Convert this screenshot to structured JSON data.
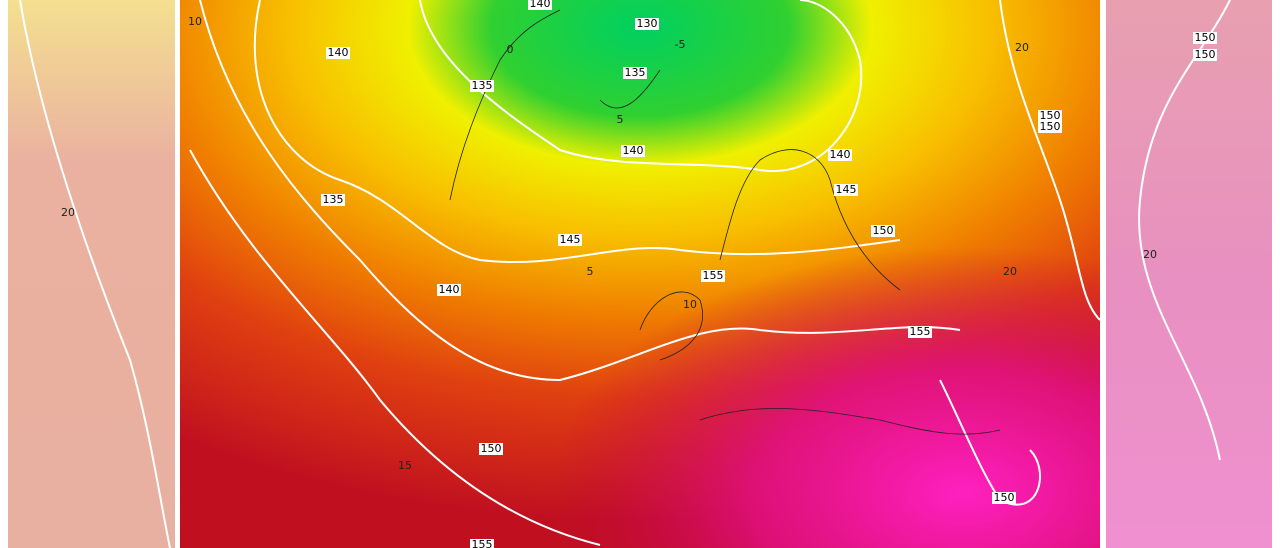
{
  "contour_labels": [
    "140",
    "130",
    "140",
    "135",
    "135",
    "140",
    "140",
    "145",
    "135",
    "145",
    "150",
    "155",
    "140",
    "155",
    "150",
    "150",
    "155",
    "150",
    "150"
  ],
  "side_labels": [
    "150",
    "150"
  ],
  "isotherm_labels": [
    "10",
    "-5",
    "0",
    "5",
    "5",
    "20",
    "20",
    "15",
    "10",
    "20",
    "20"
  ]
}
